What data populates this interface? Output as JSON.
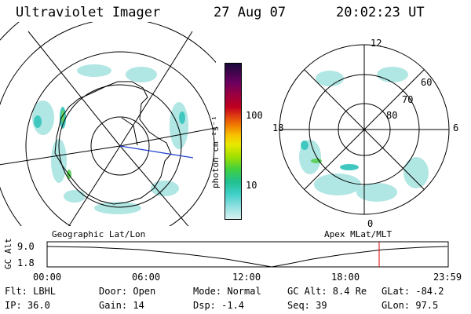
{
  "header": {
    "instrument": "Ultraviolet Imager",
    "date": "27 Aug 07",
    "time": "20:02:23 UT"
  },
  "colorbar": {
    "label": "photon cm⁻²s⁻¹",
    "ticks": [
      "100",
      "10"
    ],
    "colors": [
      "#1a0a3a",
      "#6a0060",
      "#9a0040",
      "#c00020",
      "#e04010",
      "#f08000",
      "#f8c000",
      "#e8e800",
      "#a0e000",
      "#40d040",
      "#20c090",
      "#40d0c8",
      "#90e0e0",
      "#d8f0f0"
    ]
  },
  "left_map": {
    "caption": "Geographic Lat/Lon"
  },
  "right_map": {
    "caption": "Apex MLat/MLT",
    "mlt_labels": [
      "12",
      "18",
      "6",
      "0"
    ],
    "mlat_labels": [
      "60",
      "70",
      "80"
    ]
  },
  "timeline": {
    "ylabel": "GC Alt",
    "y_ticks": [
      "9.0",
      "1.8"
    ],
    "x_ticks": [
      "00:00",
      "06:00",
      "12:00",
      "18:00",
      "23:59"
    ],
    "marker_color": "#dd0000"
  },
  "info": {
    "col1": [
      "Flt: LBHL",
      "IP: 36.0"
    ],
    "col2": [
      "Door: Open",
      "Gain: 14"
    ],
    "col3": [
      "Mode: Normal",
      "Dsp:   -1.4"
    ],
    "col4": [
      "GC Alt: 8.4 Re",
      "Seq: 39"
    ],
    "col5": [
      "GLat: -84.2",
      "GLon:  97.5"
    ]
  }
}
